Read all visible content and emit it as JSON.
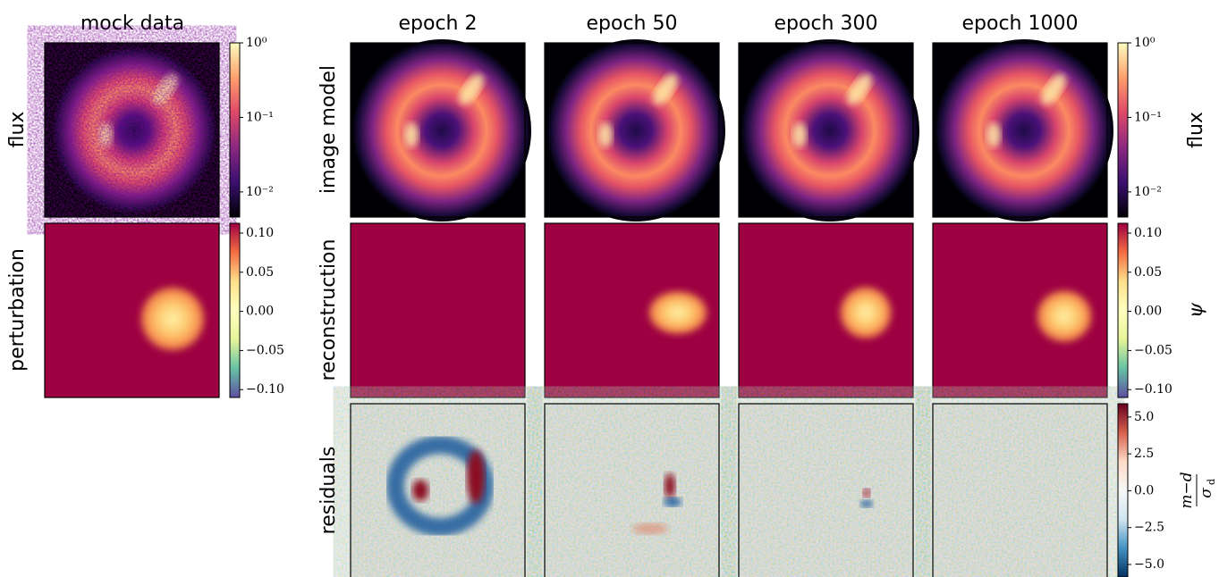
{
  "mock_column": {
    "title": "mock data",
    "row_labels": [
      "flux",
      "perturbation"
    ]
  },
  "columns": [
    "epoch 2",
    "epoch 50",
    "epoch 300",
    "epoch 1000"
  ],
  "row_labels": [
    "image model",
    "reconstruction",
    "residuals"
  ],
  "colorbars": [
    {
      "scale": "log",
      "colormap": "magma",
      "lim": [
        0.0046,
        1
      ],
      "ticks": [
        {
          "value": 1,
          "label": "10⁰"
        },
        {
          "value": 0.1,
          "label": "10⁻¹"
        },
        {
          "value": 0.01,
          "label": "10⁻²"
        }
      ]
    },
    {
      "scale": "linear",
      "colormap": "Spectral",
      "lim": [
        -0.11,
        0.1125
      ],
      "ticks": [
        {
          "value": 0.1,
          "label": "0.10"
        },
        {
          "value": 0.05,
          "label": "0.05"
        },
        {
          "value": 0,
          "label": "0.00"
        },
        {
          "value": -0.05,
          "label": "−0.05"
        },
        {
          "value": -0.1,
          "label": "−0.10"
        }
      ]
    },
    {
      "scale": "log",
      "colormap": "magma",
      "lim": [
        0.0046,
        1
      ],
      "label": "flux",
      "ticks": [
        {
          "value": 1,
          "label": "10⁰"
        },
        {
          "value": 0.1,
          "label": "10⁻¹"
        },
        {
          "value": 0.01,
          "label": "10⁻²"
        }
      ]
    },
    {
      "scale": "linear",
      "colormap": "Spectral",
      "lim": [
        -0.11,
        0.1125
      ],
      "label": "ψ",
      "ticks": [
        {
          "value": 0.1,
          "label": "0.10"
        },
        {
          "value": 0.05,
          "label": "0.05"
        },
        {
          "value": 0,
          "label": "0.00"
        },
        {
          "value": -0.05,
          "label": "−0.05"
        },
        {
          "value": -0.1,
          "label": "−0.10"
        }
      ]
    },
    {
      "scale": "linear",
      "colormap": "RdBu_r",
      "lim": [
        -5.85,
        5.9
      ],
      "label": {
        "numerator": "m−d",
        "denominator": "σ",
        "denominator_sub": "d"
      },
      "ticks": [
        {
          "value": 5,
          "label": "5.0"
        },
        {
          "value": 2.5,
          "label": "2.5"
        },
        {
          "value": 0,
          "label": "0.0"
        },
        {
          "value": -2.5,
          "label": "−2.5"
        },
        {
          "value": -5,
          "label": "−5.0"
        }
      ]
    }
  ]
}
